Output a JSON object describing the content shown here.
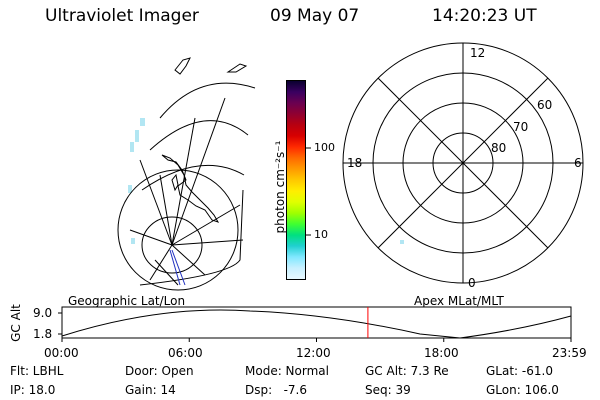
{
  "header": {
    "instrument": "Ultraviolet Imager",
    "date": "09 May 07",
    "time": "14:20:23 UT"
  },
  "colorbar": {
    "unit_label": "photon cm⁻²s⁻¹",
    "ticks": [
      "100",
      "10"
    ],
    "colors": [
      "#0a0030",
      "#3a0060",
      "#6a0050",
      "#900030",
      "#b80010",
      "#d80000",
      "#ff2a00",
      "#ff6a00",
      "#ff9a00",
      "#ffc800",
      "#ffee00",
      "#e0ff00",
      "#a0ff00",
      "#40ff30",
      "#00e080",
      "#20d0d0",
      "#80e8ff",
      "#c8f0ff",
      "#e8f8ff"
    ]
  },
  "geo_map": {
    "label": "Geographic Lat/Lon"
  },
  "polar_plot": {
    "label": "Apex MLat/MLT",
    "mlt_labels": {
      "top": "12",
      "left": "18",
      "right": "6",
      "bottom": "0"
    },
    "lat_labels": [
      "60",
      "70",
      "80"
    ]
  },
  "orbit_plot": {
    "y_axis_label": "GC Alt",
    "y_ticks": [
      "9.0",
      "1.8"
    ],
    "x_ticks": [
      "00:00",
      "06:00",
      "12:00",
      "18:00",
      "23:59"
    ],
    "current_time_fraction": 0.601,
    "marker_color": "#ff0000"
  },
  "status": {
    "filter": "Flt: LBHL",
    "ip": "IP: 18.0",
    "door": "Door: Open",
    "gain": "Gain: 14",
    "mode": "Mode: Normal",
    "dsp": "Dsp:   -7.6",
    "gc_alt": "GC Alt: 7.3 Re",
    "seq": "Seq: 39",
    "glat": "GLat: -61.0",
    "glon": "GLon: 106.0"
  }
}
